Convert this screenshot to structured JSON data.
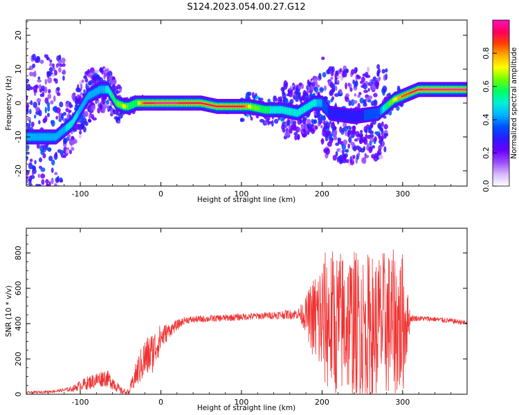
{
  "figure": {
    "title": "S124.2023.054.00.27.G12"
  },
  "chart_data": [
    {
      "type": "heatmap",
      "title": "S124.2023.054.00.27.G12",
      "xlabel": "Height of straight line (km)",
      "ylabel": "Frequency (Hz)",
      "xlim": [
        -167,
        380
      ],
      "ylim": [
        -24.5,
        24.5
      ],
      "xticks": [
        "-100",
        "0",
        "100",
        "200",
        "300"
      ],
      "yticks": [
        "-20",
        "-10",
        "0",
        "10",
        "20"
      ],
      "colorbar": {
        "label": "Normalized spectral amplitude",
        "range": [
          0,
          1
        ],
        "ticks": [
          "0.0",
          "0.2",
          "0.4",
          "0.6",
          "0.8"
        ],
        "colormap": [
          "#ffffff",
          "#d8b8ff",
          "#9a4dff",
          "#6a00ff",
          "#2a1cff",
          "#0050ff",
          "#00b4ff",
          "#00f0d8",
          "#00ff60",
          "#70ff00",
          "#ffff00",
          "#ffb000",
          "#ff4000",
          "#ff0060",
          "#ff10b8"
        ]
      },
      "dominant_frequency_ridge": {
        "x": [
          -130,
          -110,
          -90,
          -75,
          -65,
          -55,
          -45,
          -40,
          -30,
          -20,
          0,
          30,
          50,
          70,
          100,
          110,
          130,
          150,
          170,
          190,
          200,
          210,
          240,
          270,
          280,
          290,
          300,
          310,
          320,
          340,
          380
        ],
        "y": [
          -10,
          -6,
          2,
          4,
          4,
          0,
          -1,
          -1,
          0,
          0,
          0,
          0,
          0,
          -1,
          -1,
          -1,
          -2,
          -2,
          -3,
          0,
          0,
          -3,
          -4,
          -3,
          -1,
          1,
          2,
          3,
          4,
          4,
          4
        ],
        "peak_amplitude": [
          0.4,
          0.5,
          0.4,
          0.4,
          0.5,
          0.6,
          0.7,
          0.6,
          0.6,
          0.9,
          1.0,
          0.95,
          0.9,
          0.95,
          0.95,
          0.7,
          0.55,
          0.5,
          0.5,
          0.5,
          0.4,
          0.3,
          0.3,
          0.35,
          0.55,
          0.7,
          0.85,
          0.9,
          0.95,
          1.0,
          1.0
        ]
      },
      "grid": false
    },
    {
      "type": "line",
      "xlabel": "Height of straight line (km)",
      "ylabel": "SNR (10 * v/v)",
      "xlim": [
        -167,
        380
      ],
      "ylim": [
        0,
        940
      ],
      "xticks": [
        "-100",
        "0",
        "100",
        "200",
        "300"
      ],
      "yticks": [
        "0",
        "200",
        "400",
        "600",
        "800"
      ],
      "color": "#f03232",
      "series": [
        {
          "x": [
            -167,
            -150,
            -130,
            -110,
            -100,
            -90,
            -80,
            -70,
            -60,
            -50,
            -40,
            -30,
            -20,
            -10,
            0,
            10,
            20,
            30,
            50,
            70,
            90,
            110,
            130,
            150,
            170,
            180,
            190,
            200,
            210,
            220,
            230,
            240,
            250,
            260,
            270,
            280,
            290,
            300,
            310,
            320,
            340,
            360,
            380
          ],
          "mean": [
            10,
            12,
            18,
            30,
            50,
            65,
            80,
            95,
            70,
            20,
            10,
            120,
            200,
            240,
            320,
            360,
            390,
            420,
            425,
            430,
            435,
            440,
            445,
            450,
            455,
            450,
            430,
            420,
            410,
            400,
            410,
            400,
            390,
            380,
            390,
            400,
            400,
            390,
            430,
            430,
            425,
            415,
            405
          ],
          "spread": [
            6,
            6,
            8,
            15,
            30,
            40,
            45,
            50,
            45,
            20,
            15,
            80,
            120,
            120,
            80,
            40,
            30,
            20,
            20,
            20,
            20,
            20,
            20,
            25,
            30,
            100,
            250,
            380,
            420,
            420,
            420,
            420,
            420,
            420,
            420,
            420,
            420,
            420,
            20,
            15,
            15,
            15,
            15
          ]
        }
      ],
      "grid": false
    }
  ]
}
